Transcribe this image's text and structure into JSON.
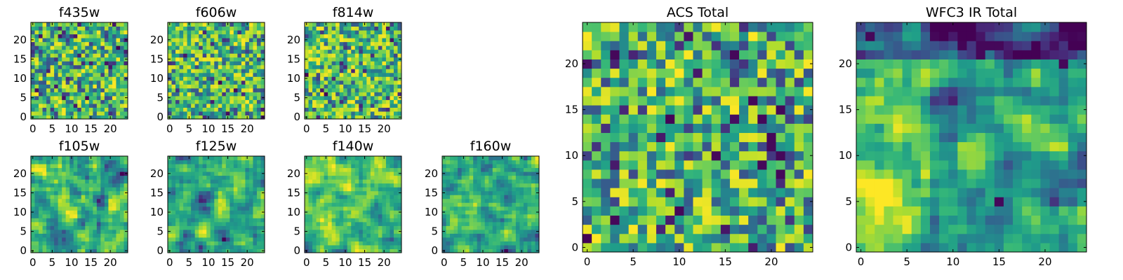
{
  "colormap": "viridis",
  "colors": {
    "viridis_low": "#440154",
    "viridis_mid": "#21918c",
    "viridis_high": "#fde725",
    "frame": "#000000",
    "background": "#ffffff"
  },
  "chart_data": [
    {
      "type": "heatmap",
      "title": "f435w",
      "grid_size": 25,
      "xlim": [
        0,
        24
      ],
      "ylim": [
        0,
        24
      ],
      "xticks": [
        0,
        5,
        10,
        15,
        20
      ],
      "yticks": [
        0,
        5,
        10,
        15,
        20
      ],
      "xtick_labels": [
        "0",
        "5",
        "10",
        "15",
        "20"
      ],
      "ytick_labels": [
        "0",
        "5",
        "10",
        "15",
        "20"
      ],
      "pattern": "high-frequency noise, mostly mid-green values with scattered dark pixels"
    },
    {
      "type": "heatmap",
      "title": "f606w",
      "grid_size": 25,
      "xlim": [
        0,
        24
      ],
      "ylim": [
        0,
        24
      ],
      "xticks": [
        0,
        5,
        10,
        15,
        20
      ],
      "yticks": [
        0,
        5,
        10,
        15,
        20
      ],
      "xtick_labels": [
        "0",
        "5",
        "10",
        "15",
        "20"
      ],
      "ytick_labels": [
        "0",
        "5",
        "10",
        "15",
        "20"
      ],
      "pattern": "high-frequency noise, green-yellow with scattered dark pixels"
    },
    {
      "type": "heatmap",
      "title": "f814w",
      "grid_size": 25,
      "xlim": [
        0,
        24
      ],
      "ylim": [
        0,
        24
      ],
      "xticks": [
        0,
        5,
        10,
        15,
        20
      ],
      "yticks": [
        0,
        5,
        10,
        15,
        20
      ],
      "xtick_labels": [
        "0",
        "5",
        "10",
        "15",
        "20"
      ],
      "ytick_labels": [
        "0",
        "5",
        "10",
        "15",
        "20"
      ],
      "pattern": "high-frequency noise, green-yellow with scattered dark pixels"
    },
    {
      "type": "heatmap",
      "title": "f105w",
      "grid_size": 25,
      "xlim": [
        0,
        24
      ],
      "ylim": [
        0,
        24
      ],
      "xticks": [
        0,
        5,
        10,
        15,
        20
      ],
      "yticks": [
        0,
        5,
        10,
        15,
        20
      ],
      "xtick_labels": [
        "0",
        "5",
        "10",
        "15",
        "20"
      ],
      "ytick_labels": [
        "0",
        "5",
        "10",
        "15",
        "20"
      ],
      "pattern": "smoother texture, yellow upper-left, dark spot near (8,6)"
    },
    {
      "type": "heatmap",
      "title": "f125w",
      "grid_size": 25,
      "xlim": [
        0,
        24
      ],
      "ylim": [
        0,
        24
      ],
      "xticks": [
        0,
        5,
        10,
        15,
        20
      ],
      "yticks": [
        0,
        5,
        10,
        15,
        20
      ],
      "xtick_labels": [
        "0",
        "5",
        "10",
        "15",
        "20"
      ],
      "ytick_labels": [
        "0",
        "5",
        "10",
        "15",
        "20"
      ],
      "pattern": "smooth texture, yellow-green with dark spots upper-right"
    },
    {
      "type": "heatmap",
      "title": "f140w",
      "grid_size": 25,
      "xlim": [
        0,
        24
      ],
      "ylim": [
        0,
        24
      ],
      "xticks": [
        0,
        5,
        10,
        15,
        20
      ],
      "yticks": [
        0,
        5,
        10,
        15,
        20
      ],
      "xtick_labels": [
        "0",
        "5",
        "10",
        "15",
        "20"
      ],
      "ytick_labels": [
        "0",
        "5",
        "10",
        "15",
        "20"
      ],
      "pattern": "smooth texture, yellow left side, dark patches upper-right"
    },
    {
      "type": "heatmap",
      "title": "f160w",
      "grid_size": 25,
      "xlim": [
        0,
        24
      ],
      "ylim": [
        0,
        24
      ],
      "xticks": [
        0,
        5,
        10,
        15,
        20
      ],
      "yticks": [
        0,
        5,
        10,
        15,
        20
      ],
      "xtick_labels": [
        "0",
        "5",
        "10",
        "15",
        "20"
      ],
      "ytick_labels": [
        "0",
        "5",
        "10",
        "15",
        "20"
      ],
      "pattern": "smooth texture, yellow lower-left, dark patches upper and middle-right"
    },
    {
      "type": "heatmap",
      "title": "ACS Total",
      "grid_size": 25,
      "xlim": [
        0,
        24
      ],
      "ylim": [
        0,
        24
      ],
      "xticks": [
        0,
        5,
        10,
        15,
        20
      ],
      "yticks": [
        0,
        5,
        10,
        15,
        20
      ],
      "xtick_labels": [
        "0",
        "5",
        "10",
        "15",
        "20"
      ],
      "ytick_labels": [
        "0",
        "5",
        "10",
        "15",
        "20"
      ],
      "pattern": "medium noise, yellow-green with dark pixels clustered around x=19-21, y=8-16",
      "dark_pixels": [
        [
          3,
          21
        ],
        [
          10,
          4
        ],
        [
          14,
          10
        ],
        [
          19,
          9
        ],
        [
          19,
          14
        ],
        [
          20,
          12
        ],
        [
          21,
          10
        ],
        [
          21,
          15
        ],
        [
          21,
          8
        ],
        [
          18,
          16
        ],
        [
          3,
          3
        ],
        [
          16,
          21
        ],
        [
          20,
          11
        ]
      ]
    },
    {
      "type": "heatmap",
      "title": "WFC3 IR Total",
      "grid_size": 25,
      "xlim": [
        0,
        24
      ],
      "ylim": [
        0,
        24
      ],
      "xticks": [
        0,
        5,
        10,
        15,
        20
      ],
      "yticks": [
        0,
        5,
        10,
        15,
        20
      ],
      "xtick_labels": [
        "0",
        "5",
        "10",
        "15",
        "20"
      ],
      "ytick_labels": [
        "0",
        "5",
        "10",
        "15",
        "20"
      ],
      "pattern": "smooth, yellow lower-left and left-centre, dark band across the top",
      "dark_pixels": [
        [
          1,
          23
        ],
        [
          13,
          22
        ],
        [
          14,
          22
        ],
        [
          15,
          22
        ],
        [
          13,
          21
        ],
        [
          22,
          20
        ],
        [
          15,
          5
        ],
        [
          24,
          23
        ]
      ]
    }
  ]
}
